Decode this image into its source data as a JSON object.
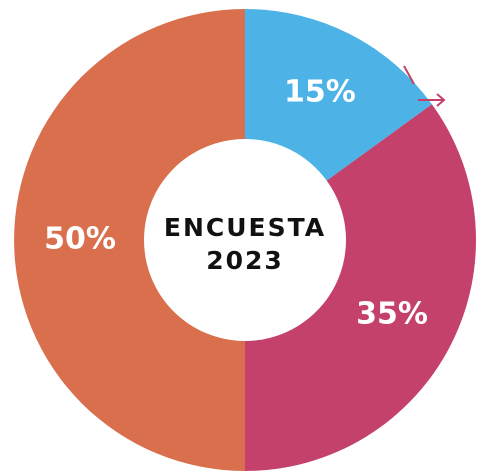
{
  "chart_data": {
    "type": "donut",
    "center_text": [
      "ENCUESTA",
      "2023"
    ],
    "categories": [
      null,
      null,
      null
    ],
    "values": [
      15,
      35,
      50
    ],
    "value_labels": [
      "15%",
      "35%",
      "50%"
    ],
    "colors": [
      "#4db3e6",
      "#c3416b",
      "#d96f4c"
    ]
  }
}
